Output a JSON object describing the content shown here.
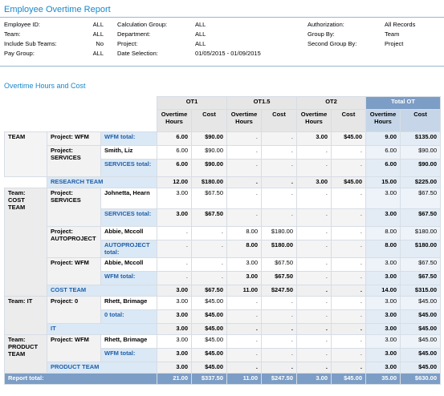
{
  "report_title": "Employee Overtime Report",
  "params": [
    {
      "l1": "Employee ID:",
      "v1": "ALL",
      "l2": "Calculation Group:",
      "v2": "ALL",
      "l3": "Authorization:",
      "v3": "All Records"
    },
    {
      "l1": "Team:",
      "v1": "ALL",
      "l2": "Department:",
      "v2": "ALL",
      "l3": "Group By:",
      "v3": "Team"
    },
    {
      "l1": "Include Sub Teams:",
      "v1": "No",
      "l2": "Project:",
      "v2": "ALL",
      "l3": "Second Group By:",
      "v3": "Project"
    },
    {
      "l1": "Pay Group:",
      "v1": "ALL",
      "l2": "Date Selection:",
      "v2": "01/05/2015 - 01/09/2015",
      "l3": "",
      "v3": ""
    }
  ],
  "section_title": "Overtime Hours and Cost",
  "col_groups": [
    "OT1",
    "OT1.5",
    "OT2",
    "Total OT"
  ],
  "sub_headers": [
    "Overtime Hours",
    "Cost",
    "Overtime Hours",
    "Cost",
    "Overtime Hours",
    "Cost",
    "Overtime Hours",
    "Cost"
  ],
  "teams": {
    "t1": {
      "label": "TEAM",
      "p1": {
        "label": "Project: WFM",
        "sub": {
          "name": "WFM total:",
          "v": [
            "6.00",
            "$90.00",
            ".",
            ".",
            "3.00",
            "$45.00",
            "9.00",
            "$135.00"
          ]
        }
      },
      "p2": {
        "label": "Project: SERVICES",
        "e1": {
          "name": "Smith, Liz",
          "v": [
            "6.00",
            "$90.00",
            ".",
            ".",
            ".",
            ".",
            "6.00",
            "$90.00"
          ]
        },
        "sub": {
          "name": "SERVICES total:",
          "v": [
            "6.00",
            "$90.00",
            ".",
            ".",
            ".",
            ".",
            "6.00",
            "$90.00"
          ]
        }
      },
      "total": {
        "name": "RESEARCH TEAM",
        "v": [
          "12.00",
          "$180.00",
          ".",
          ".",
          "3.00",
          "$45.00",
          "15.00",
          "$225.00"
        ]
      }
    },
    "t2": {
      "label": "Team: COST TEAM",
      "p1": {
        "label": "Project: SERVICES",
        "e1": {
          "name": "Johnetta, Hearn",
          "v": [
            "3.00",
            "$67.50",
            ".",
            ".",
            ".",
            ".",
            "3.00",
            "$67.50"
          ]
        },
        "sub": {
          "name": "SERVICES total:",
          "v": [
            "3.00",
            "$67.50",
            ".",
            ".",
            ".",
            ".",
            "3.00",
            "$67.50"
          ]
        }
      },
      "p2": {
        "label": "Project: AUTOPROJECT",
        "e1": {
          "name": "Abbie, Mccoll",
          "v": [
            ".",
            ".",
            "8.00",
            "$180.00",
            ".",
            ".",
            "8.00",
            "$180.00"
          ]
        },
        "sub": {
          "name": "AUTOPROJECT total:",
          "v": [
            ".",
            ".",
            "8.00",
            "$180.00",
            ".",
            ".",
            "8.00",
            "$180.00"
          ]
        }
      },
      "p3": {
        "label": "Project: WFM",
        "e1": {
          "name": "Abbie, Mccoll",
          "v": [
            ".",
            ".",
            "3.00",
            "$67.50",
            ".",
            ".",
            "3.00",
            "$67.50"
          ]
        },
        "sub": {
          "name": "WFM total:",
          "v": [
            ".",
            ".",
            "3.00",
            "$67.50",
            ".",
            ".",
            "3.00",
            "$67.50"
          ]
        }
      },
      "total": {
        "name": "COST TEAM",
        "v": [
          "3.00",
          "$67.50",
          "11.00",
          "$247.50",
          ".",
          ".",
          "14.00",
          "$315.00"
        ]
      }
    },
    "t3": {
      "label": "Team: IT",
      "p1": {
        "label": "Project: 0",
        "e1": {
          "name": "Rhett, Brimage",
          "v": [
            "3.00",
            "$45.00",
            ".",
            ".",
            ".",
            ".",
            "3.00",
            "$45.00"
          ]
        },
        "sub": {
          "name": "0 total:",
          "v": [
            "3.00",
            "$45.00",
            ".",
            ".",
            ".",
            ".",
            "3.00",
            "$45.00"
          ]
        }
      },
      "total": {
        "name": "IT",
        "v": [
          "3.00",
          "$45.00",
          ".",
          ".",
          ".",
          ".",
          "3.00",
          "$45.00"
        ]
      }
    },
    "t4": {
      "label": "Team: PRODUCT TEAM",
      "p1": {
        "label": "Project: WFM",
        "e1": {
          "name": "Rhett, Brimage",
          "v": [
            "3.00",
            "$45.00",
            ".",
            ".",
            ".",
            ".",
            "3.00",
            "$45.00"
          ]
        },
        "sub": {
          "name": "WFM total:",
          "v": [
            "3.00",
            "$45.00",
            ".",
            ".",
            ".",
            ".",
            "3.00",
            "$45.00"
          ]
        }
      },
      "total": {
        "name": "PRODUCT TEAM",
        "v": [
          "3.00",
          "$45.00",
          ".",
          ".",
          ".",
          ".",
          "3.00",
          "$45.00"
        ]
      }
    }
  },
  "report_total": {
    "name": "Report total:",
    "v": [
      "21.00",
      "$337.50",
      "11.00",
      "$247.50",
      "3.00",
      "$45.00",
      "35.00",
      "$630.00"
    ]
  }
}
